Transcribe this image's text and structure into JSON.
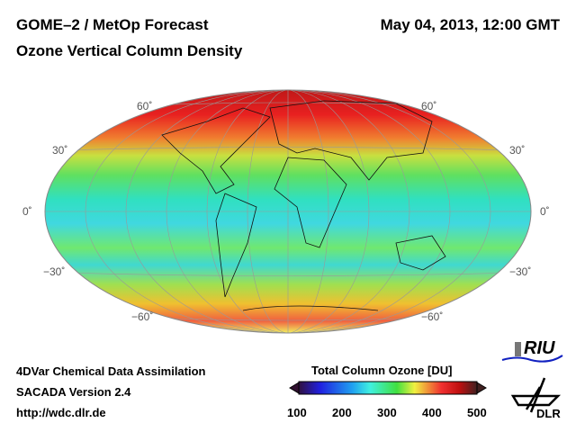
{
  "header": {
    "title": "GOME–2 / MetOp Forecast",
    "subtitle": "Ozone Vertical Column Density",
    "datetime": "May 04, 2013, 12:00 GMT"
  },
  "map": {
    "lat_labels_left": [
      "60˚",
      "30˚",
      "0˚",
      "−30˚",
      "−60˚"
    ],
    "lat_labels_right": [
      "60˚",
      "30˚",
      "0˚",
      "−30˚",
      "−60˚"
    ]
  },
  "footer": {
    "line1": "4DVar Chemical Data Assimilation",
    "line2": "SACADA Version 2.4",
    "line3": "http://wdc.dlr.de"
  },
  "colorbar": {
    "title": "Total Column Ozone [DU]",
    "ticks": [
      "100",
      "200",
      "300",
      "400",
      "500"
    ],
    "min": 100,
    "max": 500
  },
  "logos": {
    "riu": "RIU",
    "dlr": "DLR"
  }
}
